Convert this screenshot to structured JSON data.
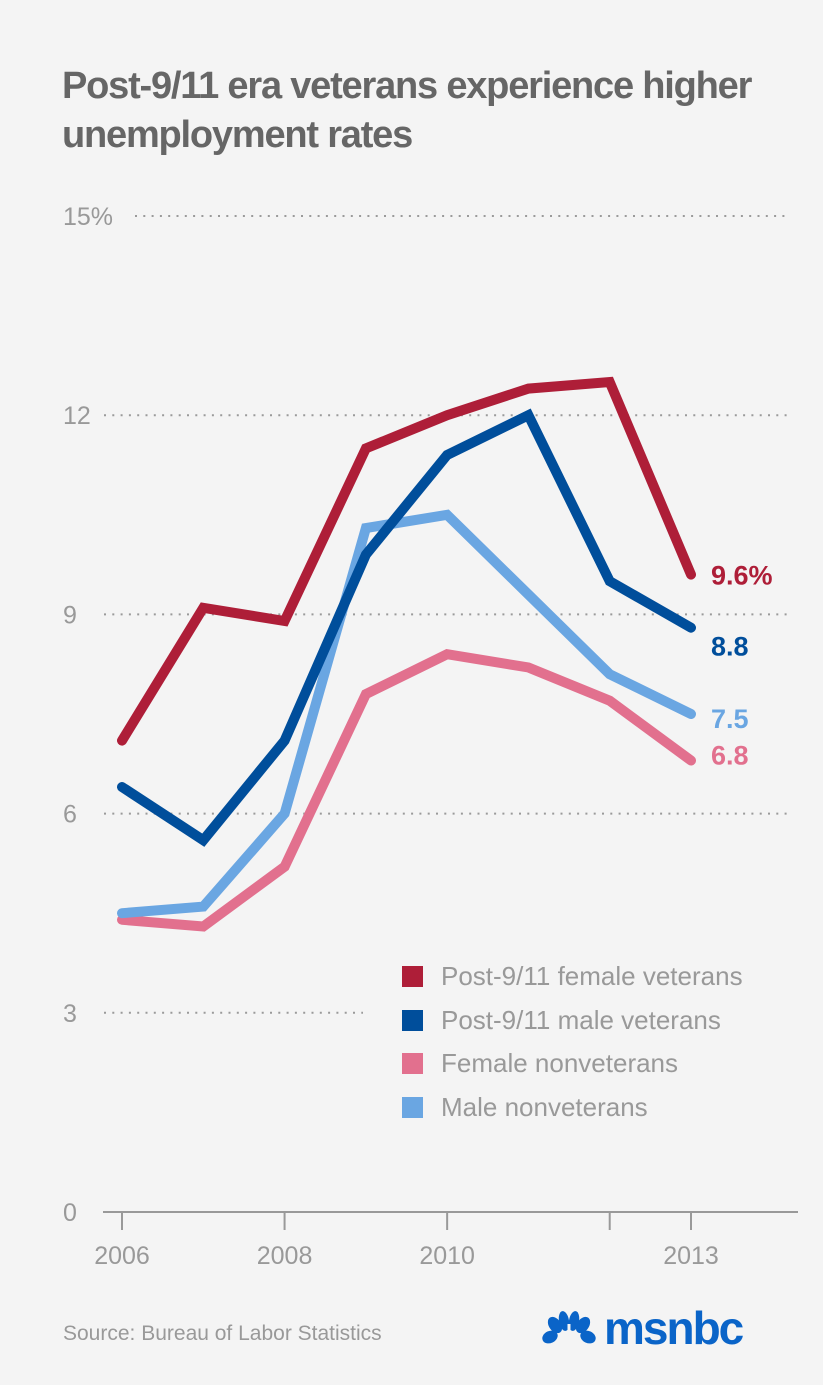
{
  "header": {
    "title": "Post-9/11 era veterans experience higher unemployment rates"
  },
  "chart_data": {
    "type": "line",
    "title": "Post-9/11 era veterans experience higher unemployment rates",
    "xlabel": "",
    "ylabel": "",
    "x": [
      2006,
      2007,
      2008,
      2009,
      2010,
      2011,
      2012,
      2013
    ],
    "xlim": [
      2006,
      2013
    ],
    "ylim": [
      0,
      15
    ],
    "y_ticks": [
      0,
      3,
      6,
      9,
      12,
      15
    ],
    "y_tick_labels": [
      "0",
      "3",
      "6",
      "9",
      "12",
      "15%"
    ],
    "x_ticks": [
      2006,
      2008,
      2010,
      2012,
      2013
    ],
    "x_tick_labels": [
      "2006",
      "2008",
      "2010",
      "",
      "2013"
    ],
    "grid": true,
    "legend_position": "bottom-right",
    "series": [
      {
        "name": "Post-9/11 female veterans",
        "color": "#ae1e38",
        "values": [
          7.1,
          9.1,
          8.9,
          11.5,
          12.0,
          12.4,
          12.5,
          9.6
        ],
        "end_label": "9.6%"
      },
      {
        "name": "Post-9/11 male veterans",
        "color": "#004e9b",
        "values": [
          6.4,
          5.6,
          7.1,
          9.9,
          11.4,
          12.0,
          9.5,
          8.8
        ],
        "end_label": "8.8"
      },
      {
        "name": "Female nonveterans",
        "color": "#e2708e",
        "values": [
          4.4,
          4.3,
          5.2,
          7.8,
          8.4,
          8.2,
          7.7,
          6.8
        ],
        "end_label": "6.8"
      },
      {
        "name": "Male nonveterans",
        "color": "#6aa6e2",
        "values": [
          4.5,
          4.6,
          6.0,
          10.3,
          10.5,
          9.3,
          8.1,
          7.5
        ],
        "end_label": "7.5"
      }
    ]
  },
  "legend": {
    "items": [
      {
        "label": "Post-9/11 female veterans",
        "color": "#ae1e38"
      },
      {
        "label": "Post-9/11 male veterans",
        "color": "#004e9b"
      },
      {
        "label": "Female nonveterans",
        "color": "#e2708e"
      },
      {
        "label": "Male nonveterans",
        "color": "#6aa6e2"
      }
    ]
  },
  "footer": {
    "source": "Source: Bureau of Labor Statistics",
    "logo_text": "msnbc",
    "logo_icon": "nbc-peacock-icon",
    "logo_color": "#0a64c8"
  }
}
